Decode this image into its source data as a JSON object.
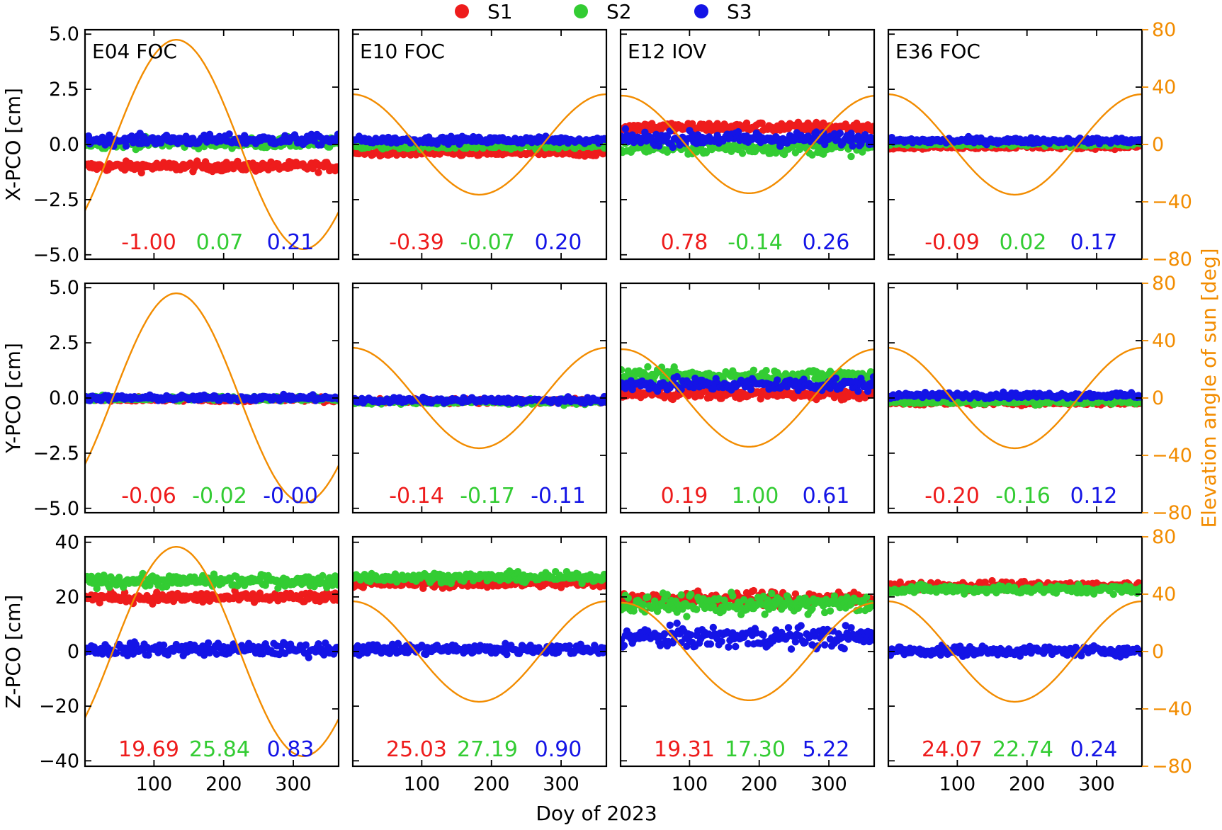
{
  "chart_data": {
    "type": "scatter",
    "xlabel": "Doy of 2023",
    "x_ticks": [
      100,
      200,
      300
    ],
    "xlim": [
      1,
      365
    ],
    "legend": {
      "placement": "top-center",
      "entries": [
        {
          "name": "S1",
          "color": "#ee1c1c"
        },
        {
          "name": "S2",
          "color": "#33cc33"
        },
        {
          "name": "S3",
          "color": "#1414e6"
        }
      ]
    },
    "secondary_axis": {
      "label": "Elevation angle of sun [deg]",
      "color": "#f28c00",
      "ylim": [
        -80,
        80
      ],
      "ticks": [
        "80",
        "40",
        "0",
        "−40",
        "−80"
      ]
    },
    "rows": [
      {
        "ylabel": "X-PCO [cm]",
        "ylim": [
          -5.2,
          5.2
        ],
        "ticks": [
          "5.0",
          "2.5",
          "0.0",
          "−2.5",
          "−5.0"
        ],
        "tick_values": [
          5.0,
          2.5,
          0.0,
          -2.5,
          -5.0
        ]
      },
      {
        "ylabel": "Y-PCO [cm]",
        "ylim": [
          -5.2,
          5.2
        ],
        "ticks": [
          "5.0",
          "2.5",
          "0.0",
          "−2.5",
          "−5.0"
        ],
        "tick_values": [
          5.0,
          2.5,
          0.0,
          -2.5,
          -5.0
        ]
      },
      {
        "ylabel": "Z-PCO [cm]",
        "ylim": [
          -42,
          42
        ],
        "ticks": [
          "40",
          "20",
          "0",
          "−20",
          "−40"
        ],
        "tick_values": [
          40,
          20,
          0,
          -20,
          -40
        ]
      }
    ],
    "panels": [
      {
        "title": "E04 FOC",
        "row": 0,
        "col": 0,
        "sun_peak_doy": 132,
        "sun_amp": 73,
        "labels": [
          "-1.00",
          "0.07",
          "0.21"
        ],
        "series": [
          {
            "name": "S1",
            "mean": -1.0,
            "spread": 0.28
          },
          {
            "name": "S2",
            "mean": 0.07,
            "spread": 0.3
          },
          {
            "name": "S3",
            "mean": 0.21,
            "spread": 0.3
          }
        ]
      },
      {
        "title": "E10 FOC",
        "row": 0,
        "col": 1,
        "sun_peak_doy": 0,
        "sun_amp": 35,
        "labels": [
          "-0.39",
          "-0.07",
          "0.20"
        ],
        "series": [
          {
            "name": "S1",
            "mean": -0.39,
            "spread": 0.18
          },
          {
            "name": "S2",
            "mean": -0.07,
            "spread": 0.18
          },
          {
            "name": "S3",
            "mean": 0.2,
            "spread": 0.2
          }
        ]
      },
      {
        "title": "E12 IOV",
        "row": 0,
        "col": 2,
        "sun_peak_doy": 3,
        "sun_amp": 34,
        "labels": [
          "0.78",
          "-0.14",
          "0.26"
        ],
        "series": [
          {
            "name": "S1",
            "mean": 0.78,
            "spread": 0.3
          },
          {
            "name": "S2",
            "mean": -0.14,
            "spread": 0.4
          },
          {
            "name": "S3",
            "mean": 0.26,
            "spread": 0.4
          }
        ]
      },
      {
        "title": "E36 FOC",
        "row": 0,
        "col": 3,
        "sun_peak_doy": 0,
        "sun_amp": 35,
        "labels": [
          "-0.09",
          "0.02",
          "0.17"
        ],
        "series": [
          {
            "name": "S1",
            "mean": -0.09,
            "spread": 0.14
          },
          {
            "name": "S2",
            "mean": 0.02,
            "spread": 0.14
          },
          {
            "name": "S3",
            "mean": 0.17,
            "spread": 0.17
          }
        ]
      },
      {
        "title": "",
        "row": 1,
        "col": 0,
        "sun_peak_doy": 132,
        "sun_amp": 73,
        "labels": [
          "-0.06",
          "-0.02",
          "-0.00"
        ],
        "series": [
          {
            "name": "S1",
            "mean": -0.06,
            "spread": 0.14
          },
          {
            "name": "S2",
            "mean": -0.02,
            "spread": 0.14
          },
          {
            "name": "S3",
            "mean": 0.0,
            "spread": 0.16
          }
        ]
      },
      {
        "title": "",
        "row": 1,
        "col": 1,
        "sun_peak_doy": 0,
        "sun_amp": 35,
        "labels": [
          "-0.14",
          "-0.17",
          "-0.11"
        ],
        "series": [
          {
            "name": "S1",
            "mean": -0.14,
            "spread": 0.14
          },
          {
            "name": "S2",
            "mean": -0.17,
            "spread": 0.14
          },
          {
            "name": "S3",
            "mean": -0.11,
            "spread": 0.15
          }
        ]
      },
      {
        "title": "",
        "row": 1,
        "col": 2,
        "sun_peak_doy": 3,
        "sun_amp": 34,
        "labels": [
          "0.19",
          "1.00",
          "0.61"
        ],
        "series": [
          {
            "name": "S1",
            "mean": 0.19,
            "spread": 0.3
          },
          {
            "name": "S2",
            "mean": 1.0,
            "spread": 0.4
          },
          {
            "name": "S3",
            "mean": 0.61,
            "spread": 0.4
          }
        ]
      },
      {
        "title": "",
        "row": 1,
        "col": 3,
        "sun_peak_doy": 0,
        "sun_amp": 35,
        "labels": [
          "-0.20",
          "-0.16",
          "0.12"
        ],
        "series": [
          {
            "name": "S1",
            "mean": -0.2,
            "spread": 0.15
          },
          {
            "name": "S2",
            "mean": -0.16,
            "spread": 0.15
          },
          {
            "name": "S3",
            "mean": 0.12,
            "spread": 0.16
          }
        ]
      },
      {
        "title": "",
        "row": 2,
        "col": 0,
        "sun_peak_doy": 132,
        "sun_amp": 73,
        "labels": [
          "19.69",
          "25.84",
          "0.83"
        ],
        "series": [
          {
            "name": "S1",
            "mean": 19.69,
            "spread": 2.5
          },
          {
            "name": "S2",
            "mean": 25.84,
            "spread": 2.8
          },
          {
            "name": "S3",
            "mean": 0.83,
            "spread": 3.0
          }
        ]
      },
      {
        "title": "",
        "row": 2,
        "col": 1,
        "sun_peak_doy": 0,
        "sun_amp": 35,
        "labels": [
          "25.03",
          "27.19",
          "0.90"
        ],
        "series": [
          {
            "name": "S1",
            "mean": 25.03,
            "spread": 2.2
          },
          {
            "name": "S2",
            "mean": 27.19,
            "spread": 2.2
          },
          {
            "name": "S3",
            "mean": 0.9,
            "spread": 2.5
          }
        ]
      },
      {
        "title": "",
        "row": 2,
        "col": 2,
        "sun_peak_doy": 3,
        "sun_amp": 34,
        "labels": [
          "19.31",
          "17.30",
          "5.22"
        ],
        "series": [
          {
            "name": "S1",
            "mean": 19.31,
            "spread": 3.5
          },
          {
            "name": "S2",
            "mean": 17.3,
            "spread": 4.5
          },
          {
            "name": "S3",
            "mean": 5.22,
            "spread": 5.0
          }
        ]
      },
      {
        "title": "",
        "row": 2,
        "col": 3,
        "sun_peak_doy": 0,
        "sun_amp": 35,
        "labels": [
          "24.07",
          "22.74",
          "0.24"
        ],
        "series": [
          {
            "name": "S1",
            "mean": 24.07,
            "spread": 2.0
          },
          {
            "name": "S2",
            "mean": 22.74,
            "spread": 2.0
          },
          {
            "name": "S3",
            "mean": 0.24,
            "spread": 2.3
          }
        ]
      }
    ]
  }
}
